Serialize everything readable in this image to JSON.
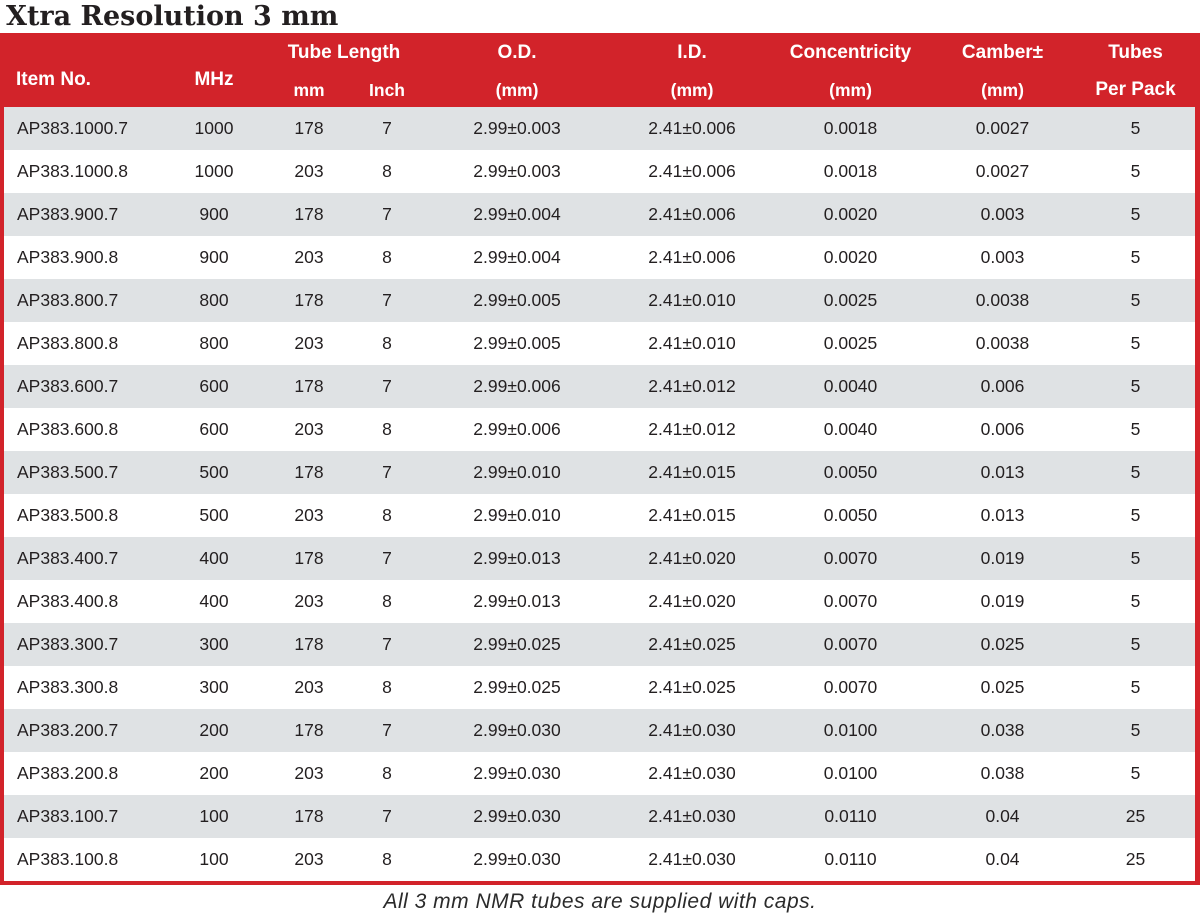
{
  "title": "Xtra Resolution 3 mm",
  "colors": {
    "header_red": "#d2232a",
    "stripe_gray": "#dfe2e4",
    "text_dark": "#231f20"
  },
  "table": {
    "header": {
      "item_no": "Item No.",
      "mhz": "MHz",
      "tube_length": "Tube Length",
      "tube_length_mm": "mm",
      "tube_length_inch": "Inch",
      "od": "O.D.",
      "od_unit": "(mm)",
      "id": "I.D.",
      "id_unit": "(mm)",
      "concentricity": "Concentricity",
      "concentricity_unit": "(mm)",
      "camber": "Camber±",
      "camber_unit": "(mm)",
      "tubes": "Tubes",
      "tubes_sub": "Per Pack"
    },
    "rows": [
      [
        "AP383.1000.7",
        "1000",
        "178",
        "7",
        "2.99±0.003",
        "2.41±0.006",
        "0.0018",
        "0.0027",
        "5"
      ],
      [
        "AP383.1000.8",
        "1000",
        "203",
        "8",
        "2.99±0.003",
        "2.41±0.006",
        "0.0018",
        "0.0027",
        "5"
      ],
      [
        "AP383.900.7",
        "900",
        "178",
        "7",
        "2.99±0.004",
        "2.41±0.006",
        "0.0020",
        "0.003",
        "5"
      ],
      [
        "AP383.900.8",
        "900",
        "203",
        "8",
        "2.99±0.004",
        "2.41±0.006",
        "0.0020",
        "0.003",
        "5"
      ],
      [
        "AP383.800.7",
        "800",
        "178",
        "7",
        "2.99±0.005",
        "2.41±0.010",
        "0.0025",
        "0.0038",
        "5"
      ],
      [
        "AP383.800.8",
        "800",
        "203",
        "8",
        "2.99±0.005",
        "2.41±0.010",
        "0.0025",
        "0.0038",
        "5"
      ],
      [
        "AP383.600.7",
        "600",
        "178",
        "7",
        "2.99±0.006",
        "2.41±0.012",
        "0.0040",
        "0.006",
        "5"
      ],
      [
        "AP383.600.8",
        "600",
        "203",
        "8",
        "2.99±0.006",
        "2.41±0.012",
        "0.0040",
        "0.006",
        "5"
      ],
      [
        "AP383.500.7",
        "500",
        "178",
        "7",
        "2.99±0.010",
        "2.41±0.015",
        "0.0050",
        "0.013",
        "5"
      ],
      [
        "AP383.500.8",
        "500",
        "203",
        "8",
        "2.99±0.010",
        "2.41±0.015",
        "0.0050",
        "0.013",
        "5"
      ],
      [
        "AP383.400.7",
        "400",
        "178",
        "7",
        "2.99±0.013",
        "2.41±0.020",
        "0.0070",
        "0.019",
        "5"
      ],
      [
        "AP383.400.8",
        "400",
        "203",
        "8",
        "2.99±0.013",
        "2.41±0.020",
        "0.0070",
        "0.019",
        "5"
      ],
      [
        "AP383.300.7",
        "300",
        "178",
        "7",
        "2.99±0.025",
        "2.41±0.025",
        "0.0070",
        "0.025",
        "5"
      ],
      [
        "AP383.300.8",
        "300",
        "203",
        "8",
        "2.99±0.025",
        "2.41±0.025",
        "0.0070",
        "0.025",
        "5"
      ],
      [
        "AP383.200.7",
        "200",
        "178",
        "7",
        "2.99±0.030",
        "2.41±0.030",
        "0.0100",
        "0.038",
        "5"
      ],
      [
        "AP383.200.8",
        "200",
        "203",
        "8",
        "2.99±0.030",
        "2.41±0.030",
        "0.0100",
        "0.038",
        "5"
      ],
      [
        "AP383.100.7",
        "100",
        "178",
        "7",
        "2.99±0.030",
        "2.41±0.030",
        "0.0110",
        "0.04",
        "25"
      ],
      [
        "AP383.100.8",
        "100",
        "203",
        "8",
        "2.99±0.030",
        "2.41±0.030",
        "0.0110",
        "0.04",
        "25"
      ]
    ]
  },
  "footer_note": "All 3 mm NMR tubes are supplied with caps."
}
